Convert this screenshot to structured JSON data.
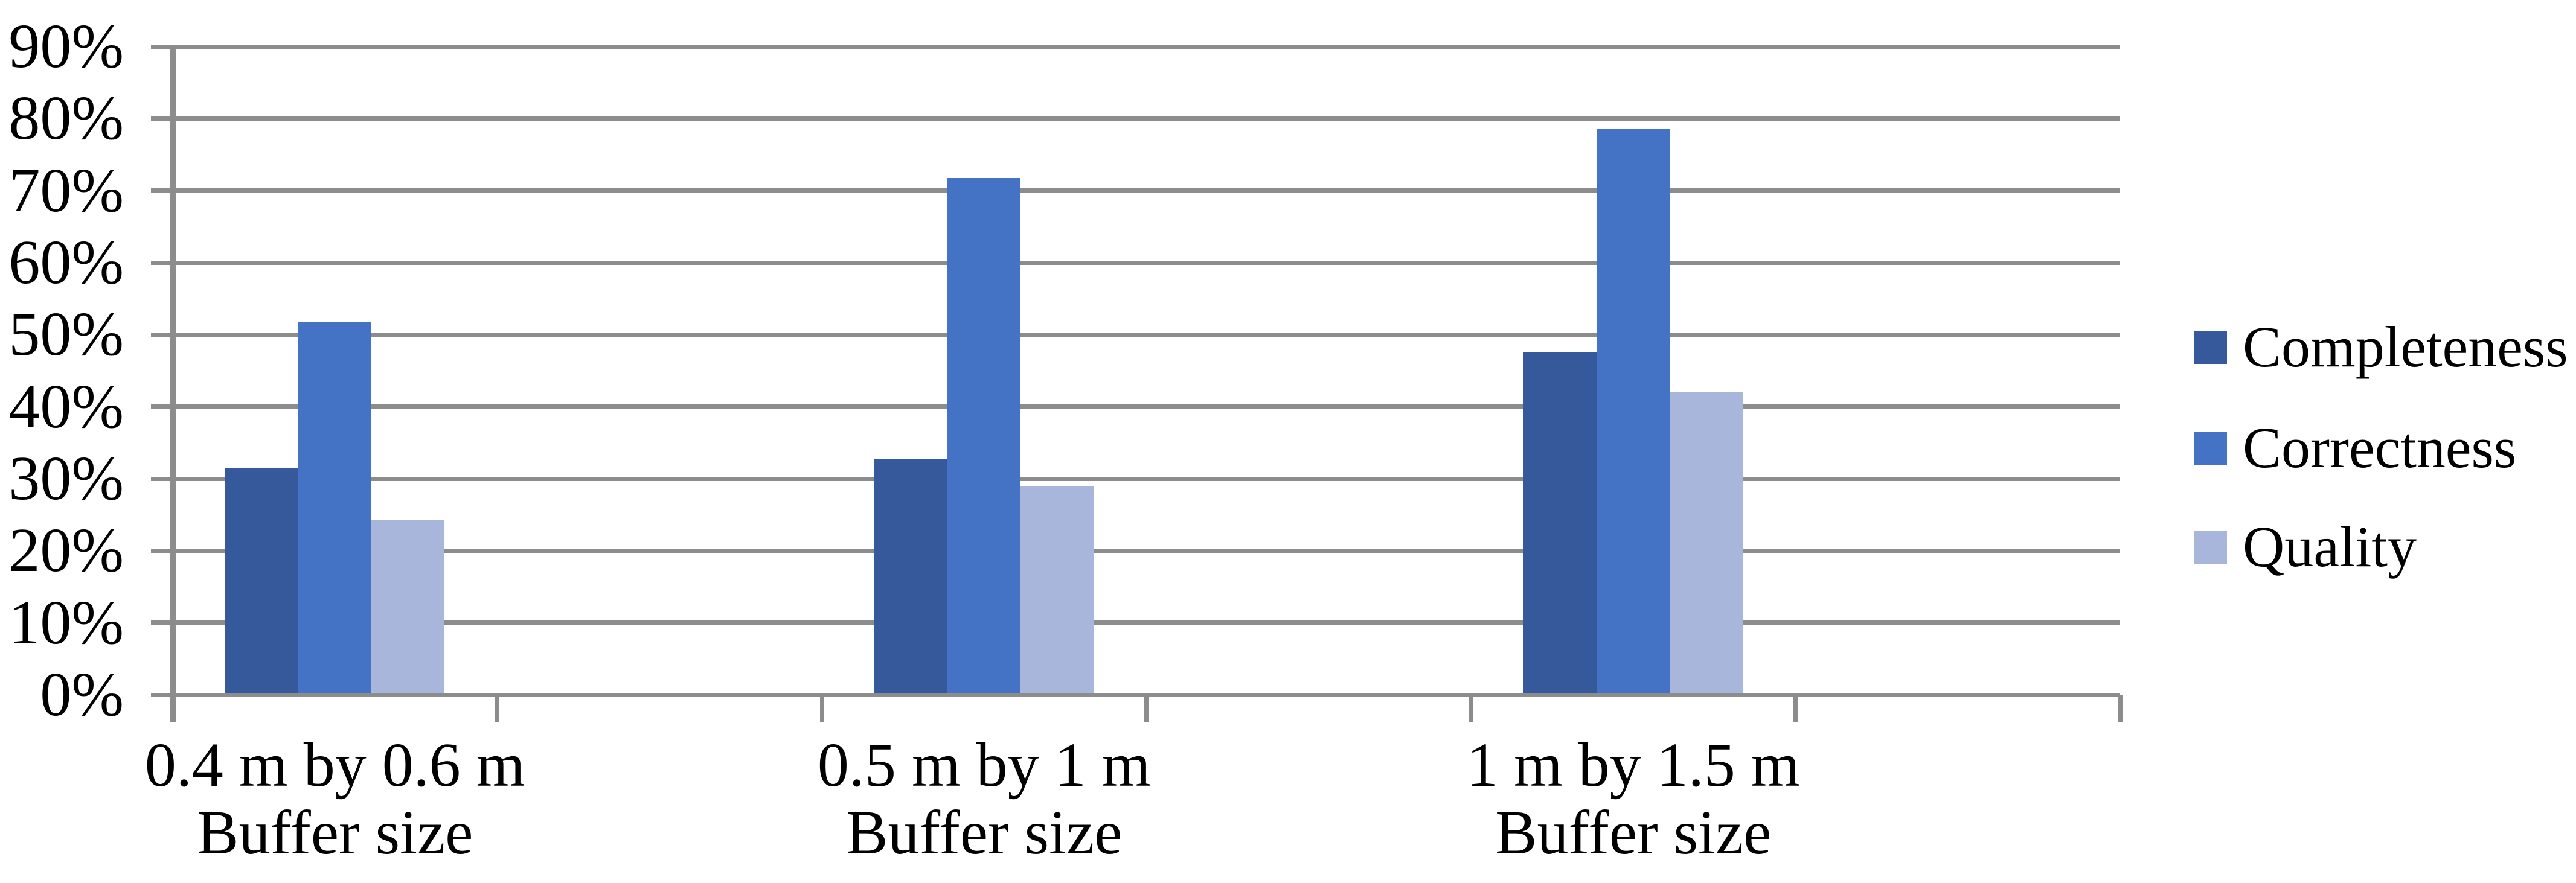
{
  "chart_data": {
    "type": "bar",
    "title": "",
    "xlabel": "",
    "ylabel": "",
    "categories": [
      {
        "line1": "0.4 m by 0.6 m",
        "line2": "Buffer size"
      },
      {
        "line1": "0.5 m by 1 m",
        "line2": "Buffer size"
      },
      {
        "line1": "1 m by 1.5 m",
        "line2": "Buffer size"
      }
    ],
    "series": [
      {
        "name": "Completeness",
        "color": "#35599B",
        "values": [
          31.4,
          32.7,
          47.5
        ]
      },
      {
        "name": "Correctness",
        "color": "#4472C4",
        "values": [
          51.8,
          71.7,
          78.6
        ]
      },
      {
        "name": "Quality",
        "color": "#A9B6DC",
        "values": [
          24.3,
          29.0,
          42.1
        ]
      }
    ],
    "y_tick_labels": [
      "0%",
      "10%",
      "20%",
      "30%",
      "40%",
      "50%",
      "60%",
      "70%",
      "80%",
      "90%"
    ],
    "ylim": [
      0,
      90
    ],
    "grid": true,
    "legend_position": "right",
    "colors": {
      "gridline": "#8C8C8C",
      "axis": "#8C8C8C",
      "text": "#000000",
      "background": "#FFFFFF"
    }
  }
}
